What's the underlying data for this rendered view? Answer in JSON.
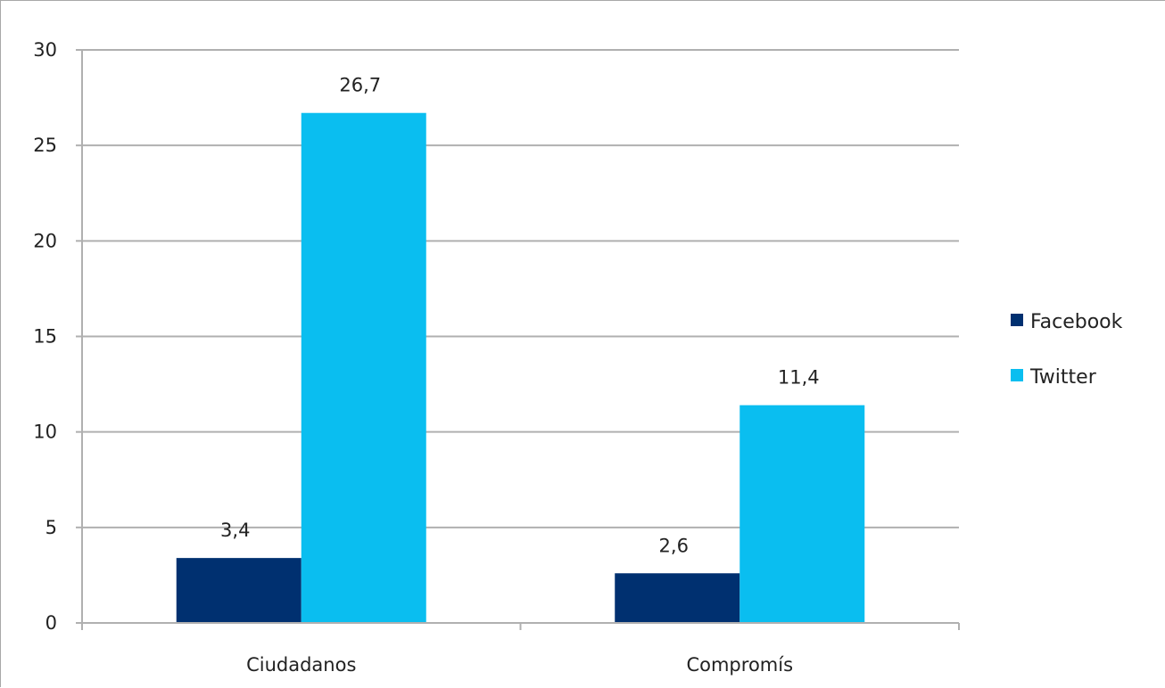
{
  "chart_data": {
    "type": "bar",
    "categories": [
      "Ciudadanos",
      "Compromís"
    ],
    "series": [
      {
        "name": "Facebook",
        "values": [
          3.4,
          2.6
        ],
        "labels": [
          "3,4",
          "2,6"
        ],
        "color": "#003070"
      },
      {
        "name": "Twitter",
        "values": [
          26.7,
          11.4
        ],
        "labels": [
          "26,7",
          "11,4"
        ],
        "color": "#0abef0"
      }
    ],
    "ylim": [
      0,
      30
    ],
    "yticks": [
      0,
      5,
      10,
      15,
      20,
      25,
      30
    ],
    "grid": true,
    "gridline_color": "#b0b0b0",
    "legend": "right",
    "title": "",
    "xlabel": "",
    "ylabel": ""
  }
}
